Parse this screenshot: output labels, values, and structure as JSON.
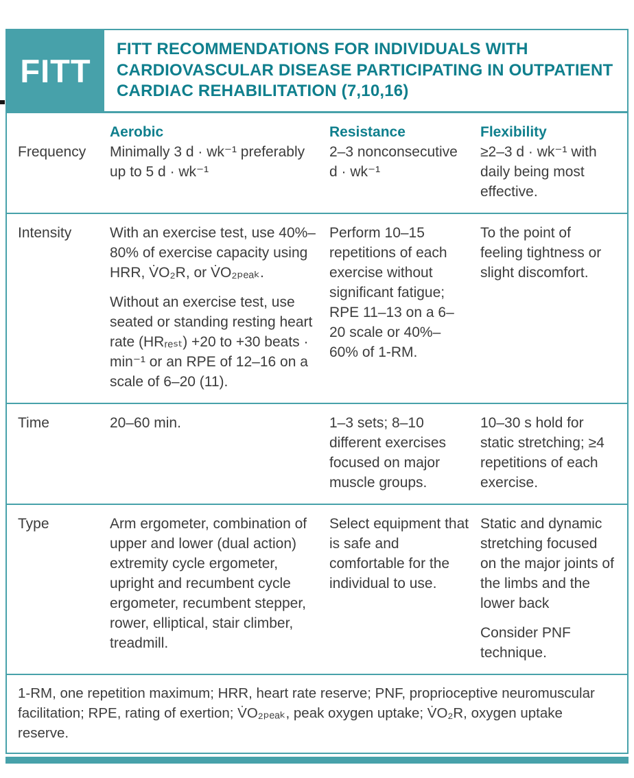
{
  "colors": {
    "accent": "#47a1aa",
    "accent_text": "#0f7f8d",
    "body_text": "#3c3c3c"
  },
  "header": {
    "badge": "FITT",
    "title": "FITT RECOMMENDATIONS FOR INDIVIDUALS WITH CARDIOVASCULAR DISEASE PARTICIPATING IN OUTPATIENT CARDIAC REHABILITATION (7,10,16)"
  },
  "table": {
    "column_headers": [
      "Aerobic",
      "Resistance",
      "Flexibility"
    ],
    "rows": [
      {
        "label": "Frequency",
        "cells": {
          "aerobic": [
            "Minimally 3 d · wk⁻¹ preferably up to 5 d · wk⁻¹"
          ],
          "resistance": [
            "2–3 nonconsecutive d · wk⁻¹"
          ],
          "flexibility": [
            "≥2–3 d · wk⁻¹ with daily being most effective."
          ]
        }
      },
      {
        "label": "Intensity",
        "cells": {
          "aerobic": [
            "With an exercise test, use 40%–80% of exercise capacity using HRR, V̇O₂R, or V̇O₂ₚₑₐₖ.",
            "Without an exercise test, use seated or standing resting heart rate (HRᵣₑₛₜ) +20 to +30 beats · min⁻¹ or an RPE of 12–16 on a scale of 6–20 (11)."
          ],
          "resistance": [
            "Perform 10–15 repetitions of each exercise without significant fatigue; RPE 11–13 on a 6–20 scale or 40%–60% of 1-RM."
          ],
          "flexibility": [
            "To the point of feeling tightness or slight discomfort."
          ]
        }
      },
      {
        "label": "Time",
        "cells": {
          "aerobic": [
            "20–60 min."
          ],
          "resistance": [
            "1–3 sets; 8–10 different exercises focused on major muscle groups."
          ],
          "flexibility": [
            "10–30 s hold for static stretching; ≥4 repetitions of each exercise."
          ]
        }
      },
      {
        "label": "Type",
        "cells": {
          "aerobic": [
            "Arm ergometer, combination of upper and lower (dual action) extremity cycle ergometer, upright and recumbent cycle ergometer, recumbent stepper, rower, elliptical, stair climber, treadmill."
          ],
          "resistance": [
            "Select equipment that is safe and comfortable for the individual to use."
          ],
          "flexibility": [
            "Static and dynamic stretching focused on the major joints of the limbs and the lower back",
            "Consider PNF technique."
          ]
        }
      }
    ]
  },
  "footnote": "1-RM, one repetition maximum; HRR, heart rate reserve; PNF, proprioceptive neuromuscular facilitation; RPE, rating of exertion; V̇O₂ₚₑₐₖ, peak oxygen uptake; V̇O₂R, oxygen uptake reserve."
}
